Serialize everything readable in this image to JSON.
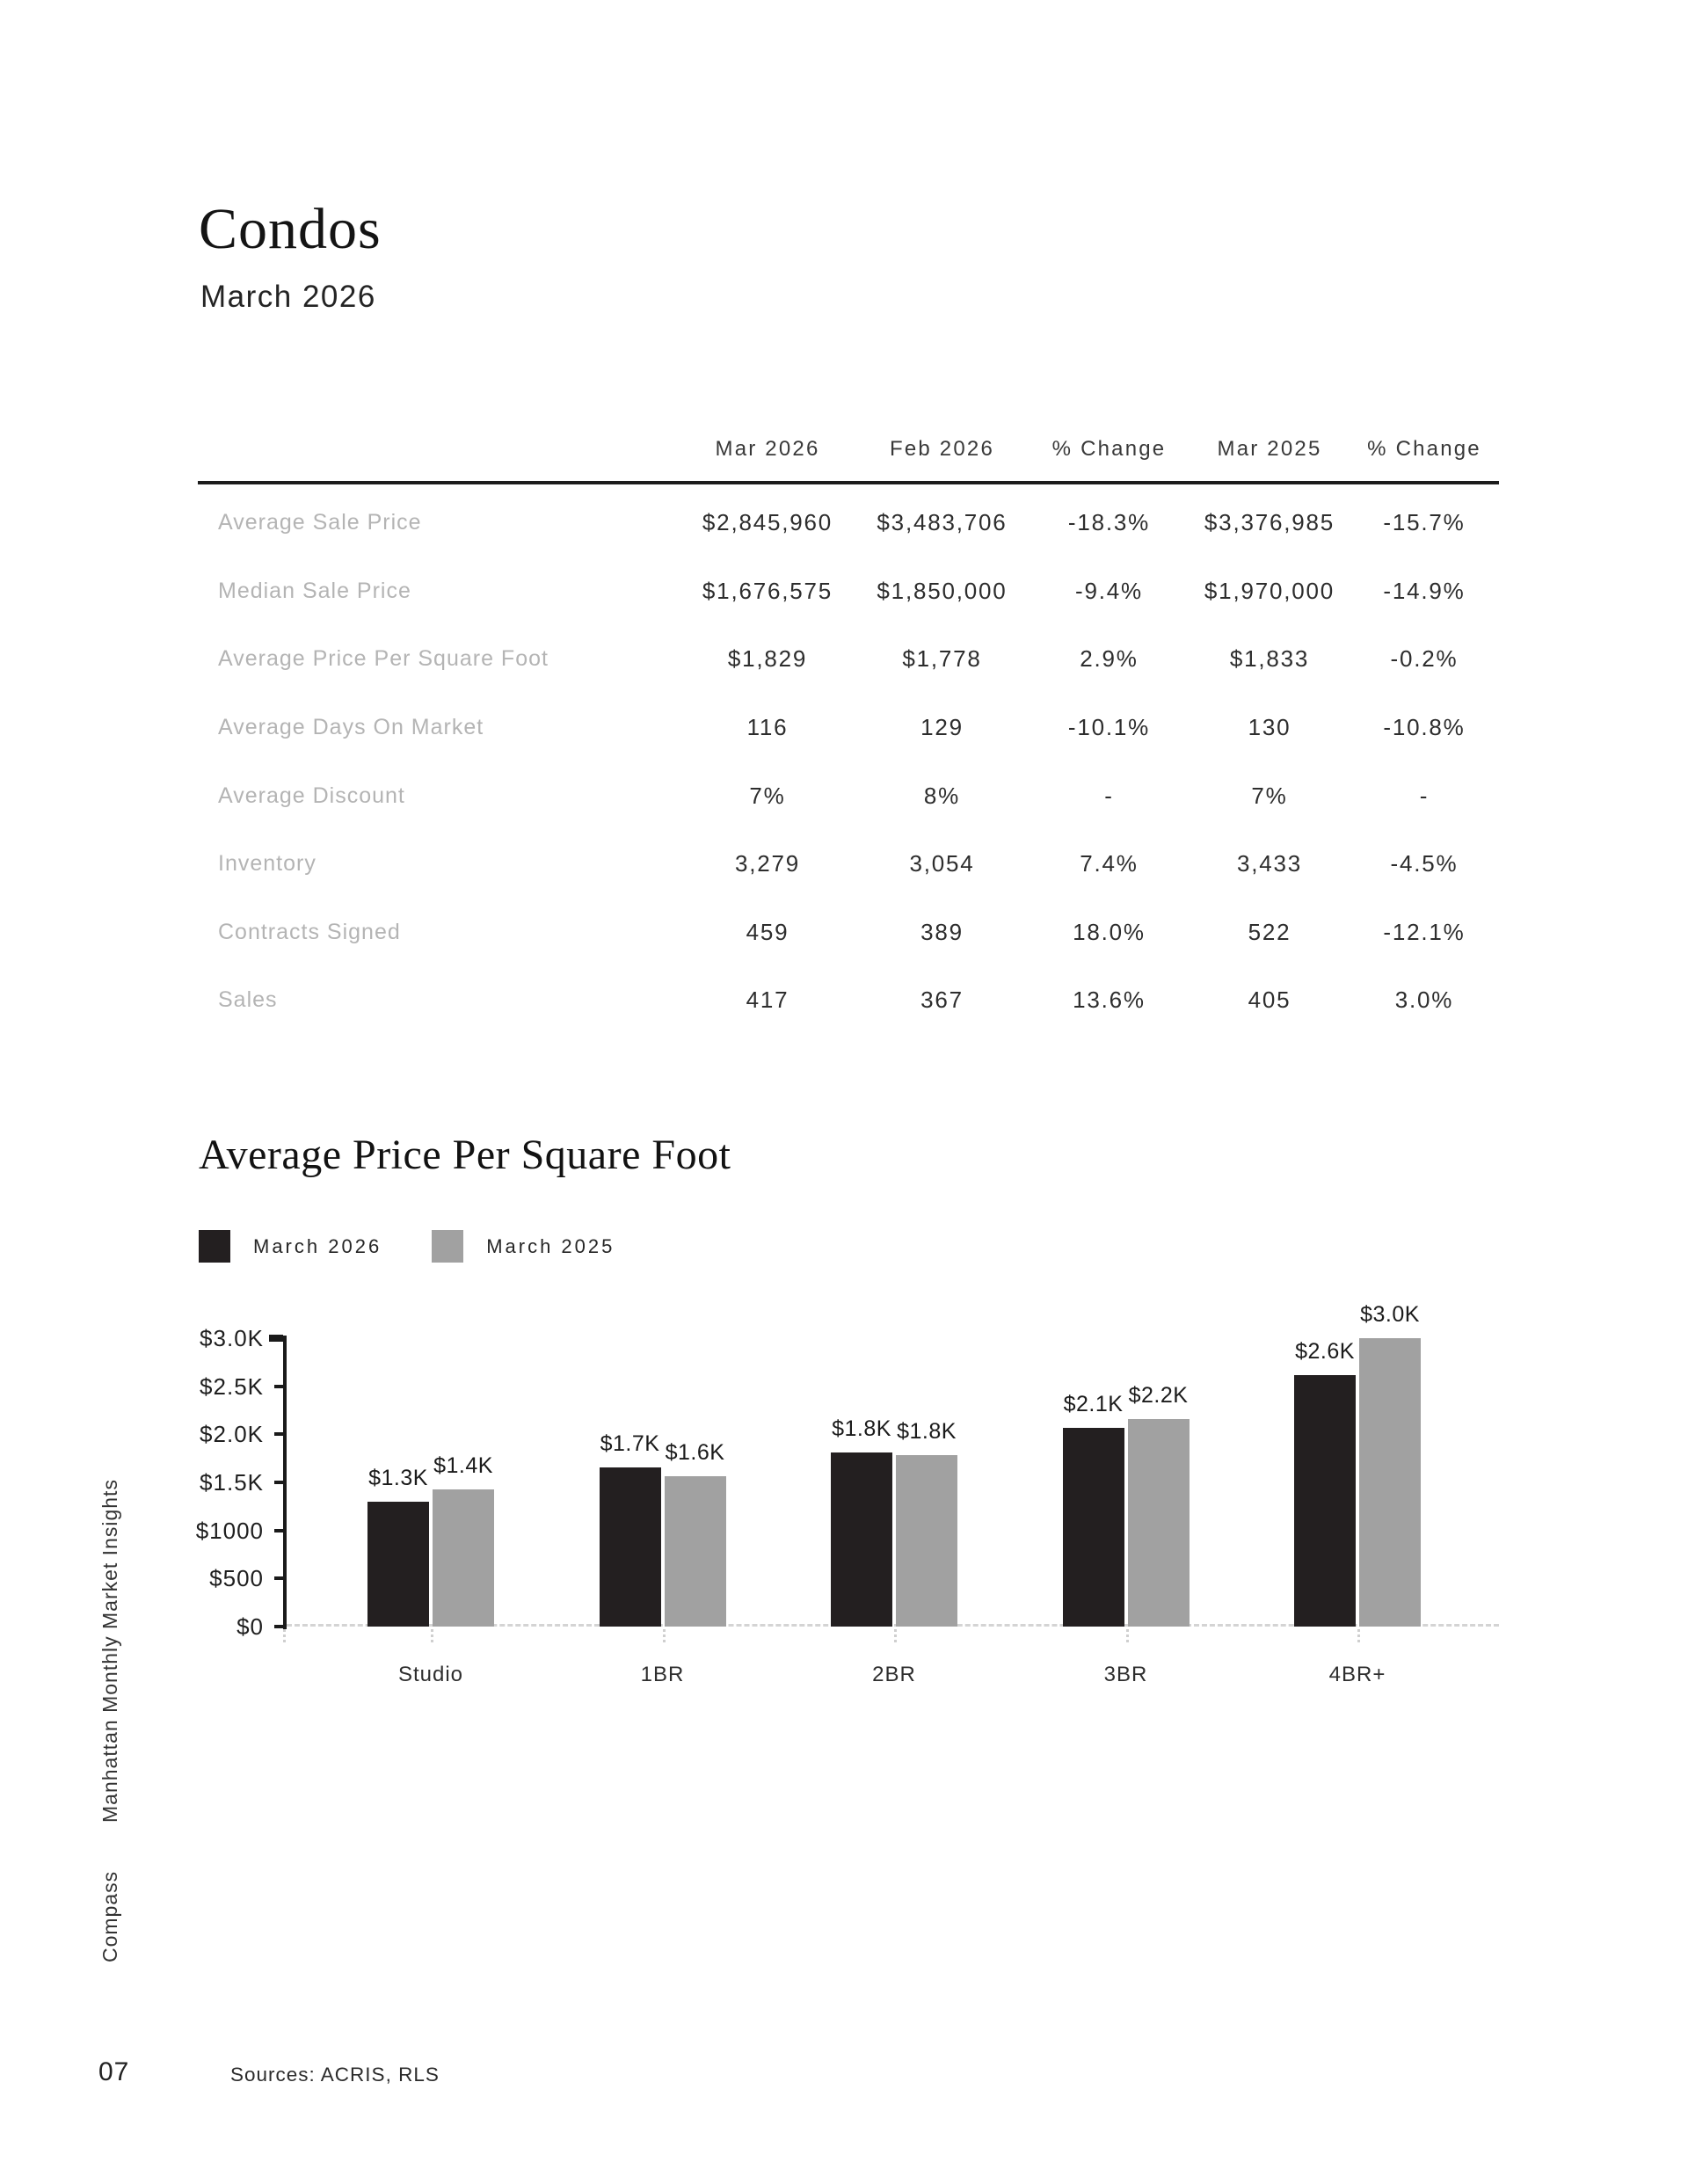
{
  "page": {
    "title": "Condos",
    "subtitle": "March 2026",
    "page_number": "07",
    "sources": "Sources: ACRIS, RLS"
  },
  "sidebar": {
    "report_name": "Manhattan Monthly Market Insights",
    "brand": "Compass"
  },
  "table": {
    "headers": [
      "Mar 2026",
      "Feb 2026",
      "% Change",
      "Mar 2025",
      "% Change"
    ],
    "rows": [
      {
        "label": "Average Sale Price",
        "values": [
          "$2,845,960",
          "$3,483,706",
          "-18.3%",
          "$3,376,985",
          "-15.7%"
        ]
      },
      {
        "label": "Median Sale Price",
        "values": [
          "$1,676,575",
          "$1,850,000",
          "-9.4%",
          "$1,970,000",
          "-14.9%"
        ]
      },
      {
        "label": "Average Price Per Square Foot",
        "values": [
          "$1,829",
          "$1,778",
          "2.9%",
          "$1,833",
          "-0.2%"
        ]
      },
      {
        "label": "Average Days On Market",
        "values": [
          "116",
          "129",
          "-10.1%",
          "130",
          "-10.8%"
        ]
      },
      {
        "label": "Average Discount",
        "values": [
          "7%",
          "8%",
          "-",
          "7%",
          "-"
        ]
      },
      {
        "label": "Inventory",
        "values": [
          "3,279",
          "3,054",
          "7.4%",
          "3,433",
          "-4.5%"
        ]
      },
      {
        "label": "Contracts Signed",
        "values": [
          "459",
          "389",
          "18.0%",
          "522",
          "-12.1%"
        ]
      },
      {
        "label": "Sales",
        "values": [
          "417",
          "367",
          "13.6%",
          "405",
          "3.0%"
        ]
      }
    ]
  },
  "chart_section": {
    "heading": "Average Price Per Square Foot"
  },
  "chart_data": {
    "type": "bar",
    "title": "Average Price Per Square Foot",
    "categories": [
      "Studio",
      "1BR",
      "2BR",
      "3BR",
      "4BR+"
    ],
    "series": [
      {
        "name": "March 2026",
        "color": "#231f20",
        "values": [
          1300,
          1660,
          1815,
          2065,
          2615
        ],
        "labels": [
          "$1.3K",
          "$1.7K",
          "$1.8K",
          "$2.1K",
          "$2.6K"
        ]
      },
      {
        "name": "March 2025",
        "color": "#a1a1a1",
        "values": [
          1430,
          1565,
          1780,
          2160,
          3000
        ],
        "labels": [
          "$1.4K",
          "$1.6K",
          "$1.8K",
          "$2.2K",
          "$3.0K"
        ]
      }
    ],
    "y_ticks": [
      "$3.0K",
      "$2.5K",
      "$2.0K",
      "$1.5K",
      "$1000",
      "$500",
      "$0"
    ],
    "ylim": [
      0,
      3000
    ],
    "grid": "dashed-zero-line-only",
    "legend_position": "top-left"
  }
}
